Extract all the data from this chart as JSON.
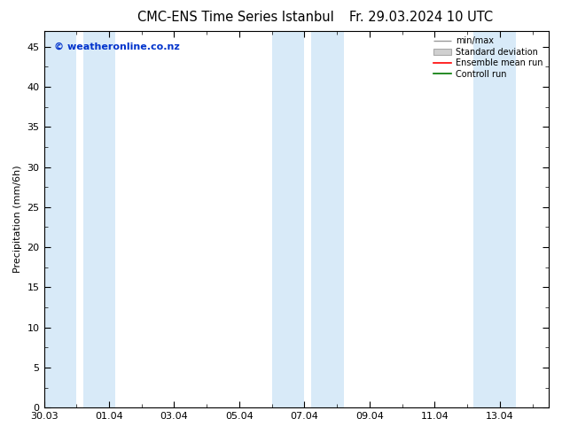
{
  "title_left": "CMC-ENS Time Series Istanbul",
  "title_right": "Fr. 29.03.2024 10 UTC",
  "ylabel": "Precipitation (mm/6h)",
  "ylim": [
    0,
    47
  ],
  "yticks": [
    0,
    5,
    10,
    15,
    20,
    25,
    30,
    35,
    40,
    45
  ],
  "xtick_labels": [
    "30.03",
    "01.04",
    "03.04",
    "05.04",
    "07.04",
    "09.04",
    "11.04",
    "13.04"
  ],
  "xtick_positions": [
    0,
    2,
    4,
    6,
    8,
    10,
    12,
    14
  ],
  "xlim": [
    0,
    15.5
  ],
  "watermark": "© weatheronline.co.nz",
  "band_color": "#d8eaf8",
  "bands": [
    [
      0,
      1
    ],
    [
      1.5,
      2.5
    ],
    [
      7.5,
      8.5
    ],
    [
      9,
      10
    ],
    [
      13.5,
      14.5
    ]
  ],
  "legend_entries": [
    {
      "label": "min/max",
      "color": "#888888"
    },
    {
      "label": "Standard deviation",
      "color": "#cccccc"
    },
    {
      "label": "Ensemble mean run",
      "color": "#ff0000"
    },
    {
      "label": "Controll run",
      "color": "#007700"
    }
  ],
  "background_color": "#ffffff",
  "title_fontsize": 10.5,
  "ylabel_fontsize": 8,
  "tick_fontsize": 8,
  "watermark_color": "#0033cc",
  "watermark_fontsize": 8
}
